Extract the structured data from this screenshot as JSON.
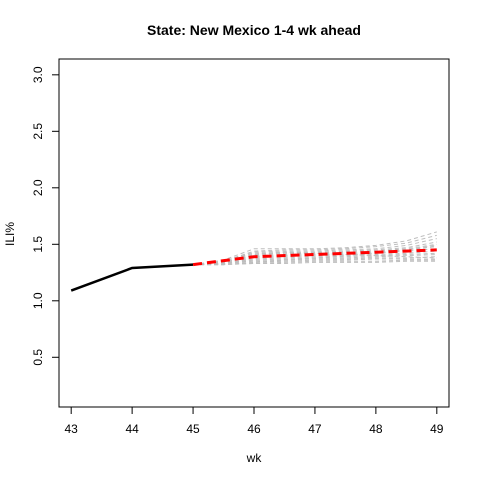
{
  "chart_data": {
    "type": "line",
    "title": "State: New Mexico 1-4 wk ahead",
    "xlabel": "wk",
    "ylabel": "ILI%",
    "xlim": [
      42.8,
      49.2
    ],
    "ylim": [
      0.06,
      3.14
    ],
    "x_ticks": [
      43,
      44,
      45,
      46,
      47,
      48,
      49
    ],
    "y_ticks": [
      0.5,
      1.0,
      1.5,
      2.0,
      2.5,
      3.0
    ],
    "x_tick_labels": [
      "43",
      "44",
      "45",
      "46",
      "47",
      "48",
      "49"
    ],
    "y_tick_labels": [
      "0.5",
      "1.0",
      "1.5",
      "2.0",
      "2.5",
      "3.0"
    ],
    "grid": false,
    "observed": {
      "x": [
        43,
        44,
        45
      ],
      "y": [
        1.09,
        1.29,
        1.32
      ],
      "color": "#000000"
    },
    "forecast_mean": {
      "x": [
        45,
        46,
        47,
        48,
        49
      ],
      "y": [
        1.32,
        1.39,
        1.41,
        1.43,
        1.45
      ],
      "color": "#ff0000"
    },
    "trajectories": {
      "color": "#bebebe",
      "x": [
        45,
        45.5,
        46,
        46.5,
        47,
        47.5,
        48,
        48.5,
        49
      ],
      "series": [
        [
          1.32,
          1.36,
          1.46,
          1.46,
          1.46,
          1.47,
          1.49,
          1.53,
          1.61
        ],
        [
          1.32,
          1.35,
          1.44,
          1.45,
          1.45,
          1.46,
          1.48,
          1.51,
          1.58
        ],
        [
          1.32,
          1.35,
          1.43,
          1.44,
          1.44,
          1.45,
          1.46,
          1.49,
          1.55
        ],
        [
          1.32,
          1.35,
          1.42,
          1.43,
          1.43,
          1.44,
          1.45,
          1.47,
          1.52
        ],
        [
          1.32,
          1.34,
          1.41,
          1.42,
          1.42,
          1.43,
          1.44,
          1.46,
          1.5
        ],
        [
          1.32,
          1.34,
          1.4,
          1.41,
          1.42,
          1.42,
          1.43,
          1.45,
          1.48
        ],
        [
          1.32,
          1.34,
          1.39,
          1.4,
          1.41,
          1.41,
          1.42,
          1.44,
          1.46
        ],
        [
          1.32,
          1.33,
          1.38,
          1.39,
          1.4,
          1.4,
          1.41,
          1.42,
          1.44
        ],
        [
          1.32,
          1.33,
          1.37,
          1.38,
          1.39,
          1.39,
          1.4,
          1.41,
          1.42
        ],
        [
          1.32,
          1.33,
          1.36,
          1.37,
          1.38,
          1.38,
          1.39,
          1.4,
          1.41
        ],
        [
          1.32,
          1.33,
          1.35,
          1.36,
          1.37,
          1.37,
          1.38,
          1.38,
          1.39
        ],
        [
          1.32,
          1.32,
          1.34,
          1.35,
          1.36,
          1.36,
          1.37,
          1.37,
          1.37
        ],
        [
          1.32,
          1.32,
          1.33,
          1.34,
          1.35,
          1.35,
          1.35,
          1.36,
          1.36
        ],
        [
          1.32,
          1.32,
          1.33,
          1.33,
          1.34,
          1.34,
          1.34,
          1.35,
          1.35
        ],
        [
          1.32,
          1.32,
          1.34,
          1.36,
          1.38,
          1.4,
          1.42,
          1.45,
          1.49
        ],
        [
          1.32,
          1.33,
          1.41,
          1.43,
          1.42,
          1.41,
          1.4,
          1.39,
          1.38
        ]
      ]
    }
  }
}
